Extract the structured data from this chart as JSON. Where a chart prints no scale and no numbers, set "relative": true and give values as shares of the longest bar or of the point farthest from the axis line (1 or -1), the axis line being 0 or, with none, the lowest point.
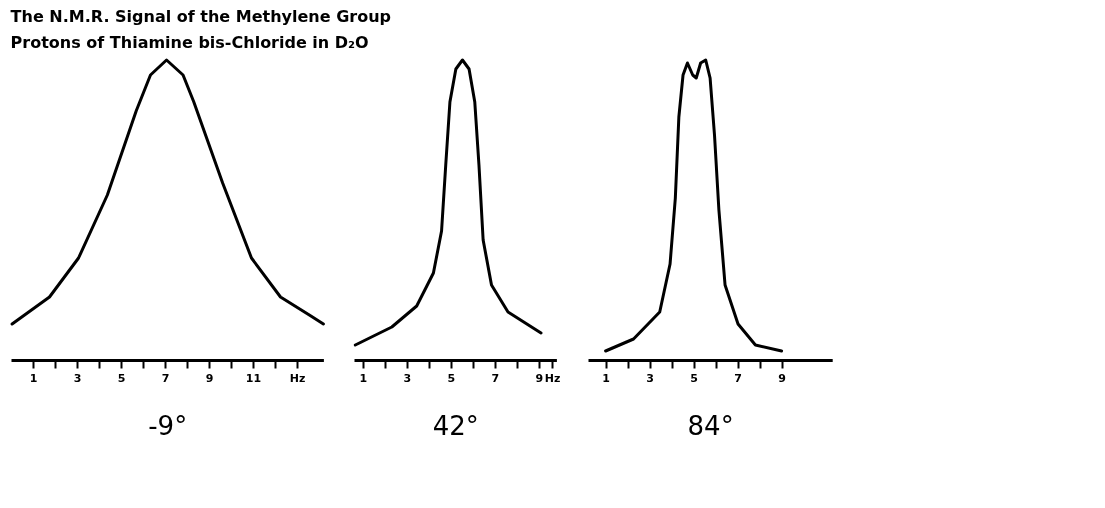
{
  "chart_data": [
    {
      "type": "line",
      "title": "The N.M.R. Signal of the Methylene Group",
      "subtitle": "Protons of Thiamine bis-Chloride in D₂O",
      "xlabel": "-9°",
      "relative": true,
      "xlim": [
        0,
        14.2
      ],
      "xticks": [
        1,
        {
          "value": 2,
          "label": null
        },
        3,
        {
          "value": 4,
          "label": null
        },
        5,
        {
          "value": 6,
          "label": null
        },
        7,
        {
          "value": 8,
          "label": null
        },
        9,
        {
          "value": 10,
          "label": null
        },
        11,
        {
          "value": 12,
          "label": null
        },
        {
          "value": 13,
          "label": "Hz"
        }
      ],
      "x": [
        0.05,
        1.75,
        3.07,
        4.38,
        5.69,
        6.34,
        7.07,
        7.82,
        8.31,
        9.62,
        10.93,
        12.25,
        13.56,
        14.2
      ],
      "series": [
        {
          "color": "#000000",
          "values": [
            0.12,
            0.21,
            0.34,
            0.55,
            0.83,
            0.95,
            1,
            0.95,
            0.86,
            0.59,
            0.34,
            0.21,
            0.15,
            0.12
          ]
        }
      ]
    },
    {
      "type": "line",
      "xlabel": "42°",
      "relative": true,
      "xlim": [
        0.6,
        9.8
      ],
      "xticks": [
        1,
        {
          "value": 2,
          "label": null
        },
        3,
        {
          "value": 4,
          "label": null
        },
        5,
        {
          "value": 6,
          "label": null
        },
        7,
        {
          "value": 8,
          "label": null
        },
        9,
        {
          "value": 9.6,
          "label": "Hz"
        }
      ],
      "x": [
        0.66,
        2.32,
        3.45,
        4.21,
        4.58,
        4.77,
        4.96,
        5.23,
        5.53,
        5.83,
        6.09,
        6.28,
        6.47,
        6.85,
        7.6,
        9.1
      ],
      "series": [
        {
          "color": "#000000",
          "values": [
            0.05,
            0.11,
            0.18,
            0.29,
            0.43,
            0.65,
            0.86,
            0.97,
            1,
            0.97,
            0.86,
            0.65,
            0.4,
            0.25,
            0.16,
            0.09
          ]
        }
      ]
    },
    {
      "type": "line",
      "xlabel": "84°",
      "relative": true,
      "xlim": [
        0.2,
        11.3
      ],
      "xticks": [
        1,
        {
          "value": 2,
          "label": null
        },
        3,
        {
          "value": 4,
          "label": null
        },
        5,
        {
          "value": 6,
          "label": null
        },
        7,
        {
          "value": 8,
          "label": null
        },
        9
      ],
      "x": [
        1.0,
        2.27,
        3.46,
        3.93,
        4.17,
        4.33,
        4.52,
        4.72,
        4.96,
        5.12,
        5.32,
        5.55,
        5.75,
        5.95,
        6.15,
        6.43,
        7.02,
        7.81,
        9.0
      ],
      "series": [
        {
          "color": "#000000",
          "values": [
            0.03,
            0.07,
            0.16,
            0.32,
            0.54,
            0.81,
            0.95,
            0.99,
            0.95,
            0.94,
            0.99,
            1,
            0.94,
            0.75,
            0.5,
            0.25,
            0.12,
            0.05,
            0.03
          ]
        }
      ]
    }
  ]
}
